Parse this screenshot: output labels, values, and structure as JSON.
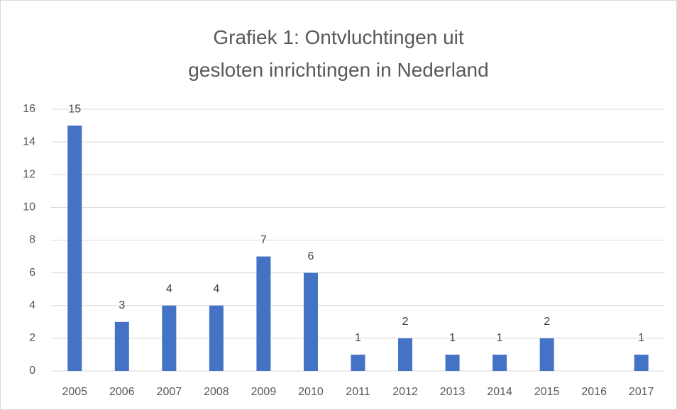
{
  "chart_data": {
    "type": "bar",
    "title": "Grafiek 1: Ontvluchtingen uit gesloten inrichtingen in Nederland",
    "categories": [
      "2005",
      "2006",
      "2007",
      "2008",
      "2009",
      "2010",
      "2011",
      "2012",
      "2013",
      "2014",
      "2015",
      "2016",
      "2017"
    ],
    "values": [
      15,
      3,
      4,
      4,
      7,
      6,
      1,
      2,
      1,
      1,
      2,
      null,
      1
    ],
    "color": "#4472c4",
    "ylim": [
      0,
      16
    ],
    "yticks": [
      0,
      2,
      4,
      6,
      8,
      10,
      12,
      14,
      16
    ],
    "grid": true
  }
}
